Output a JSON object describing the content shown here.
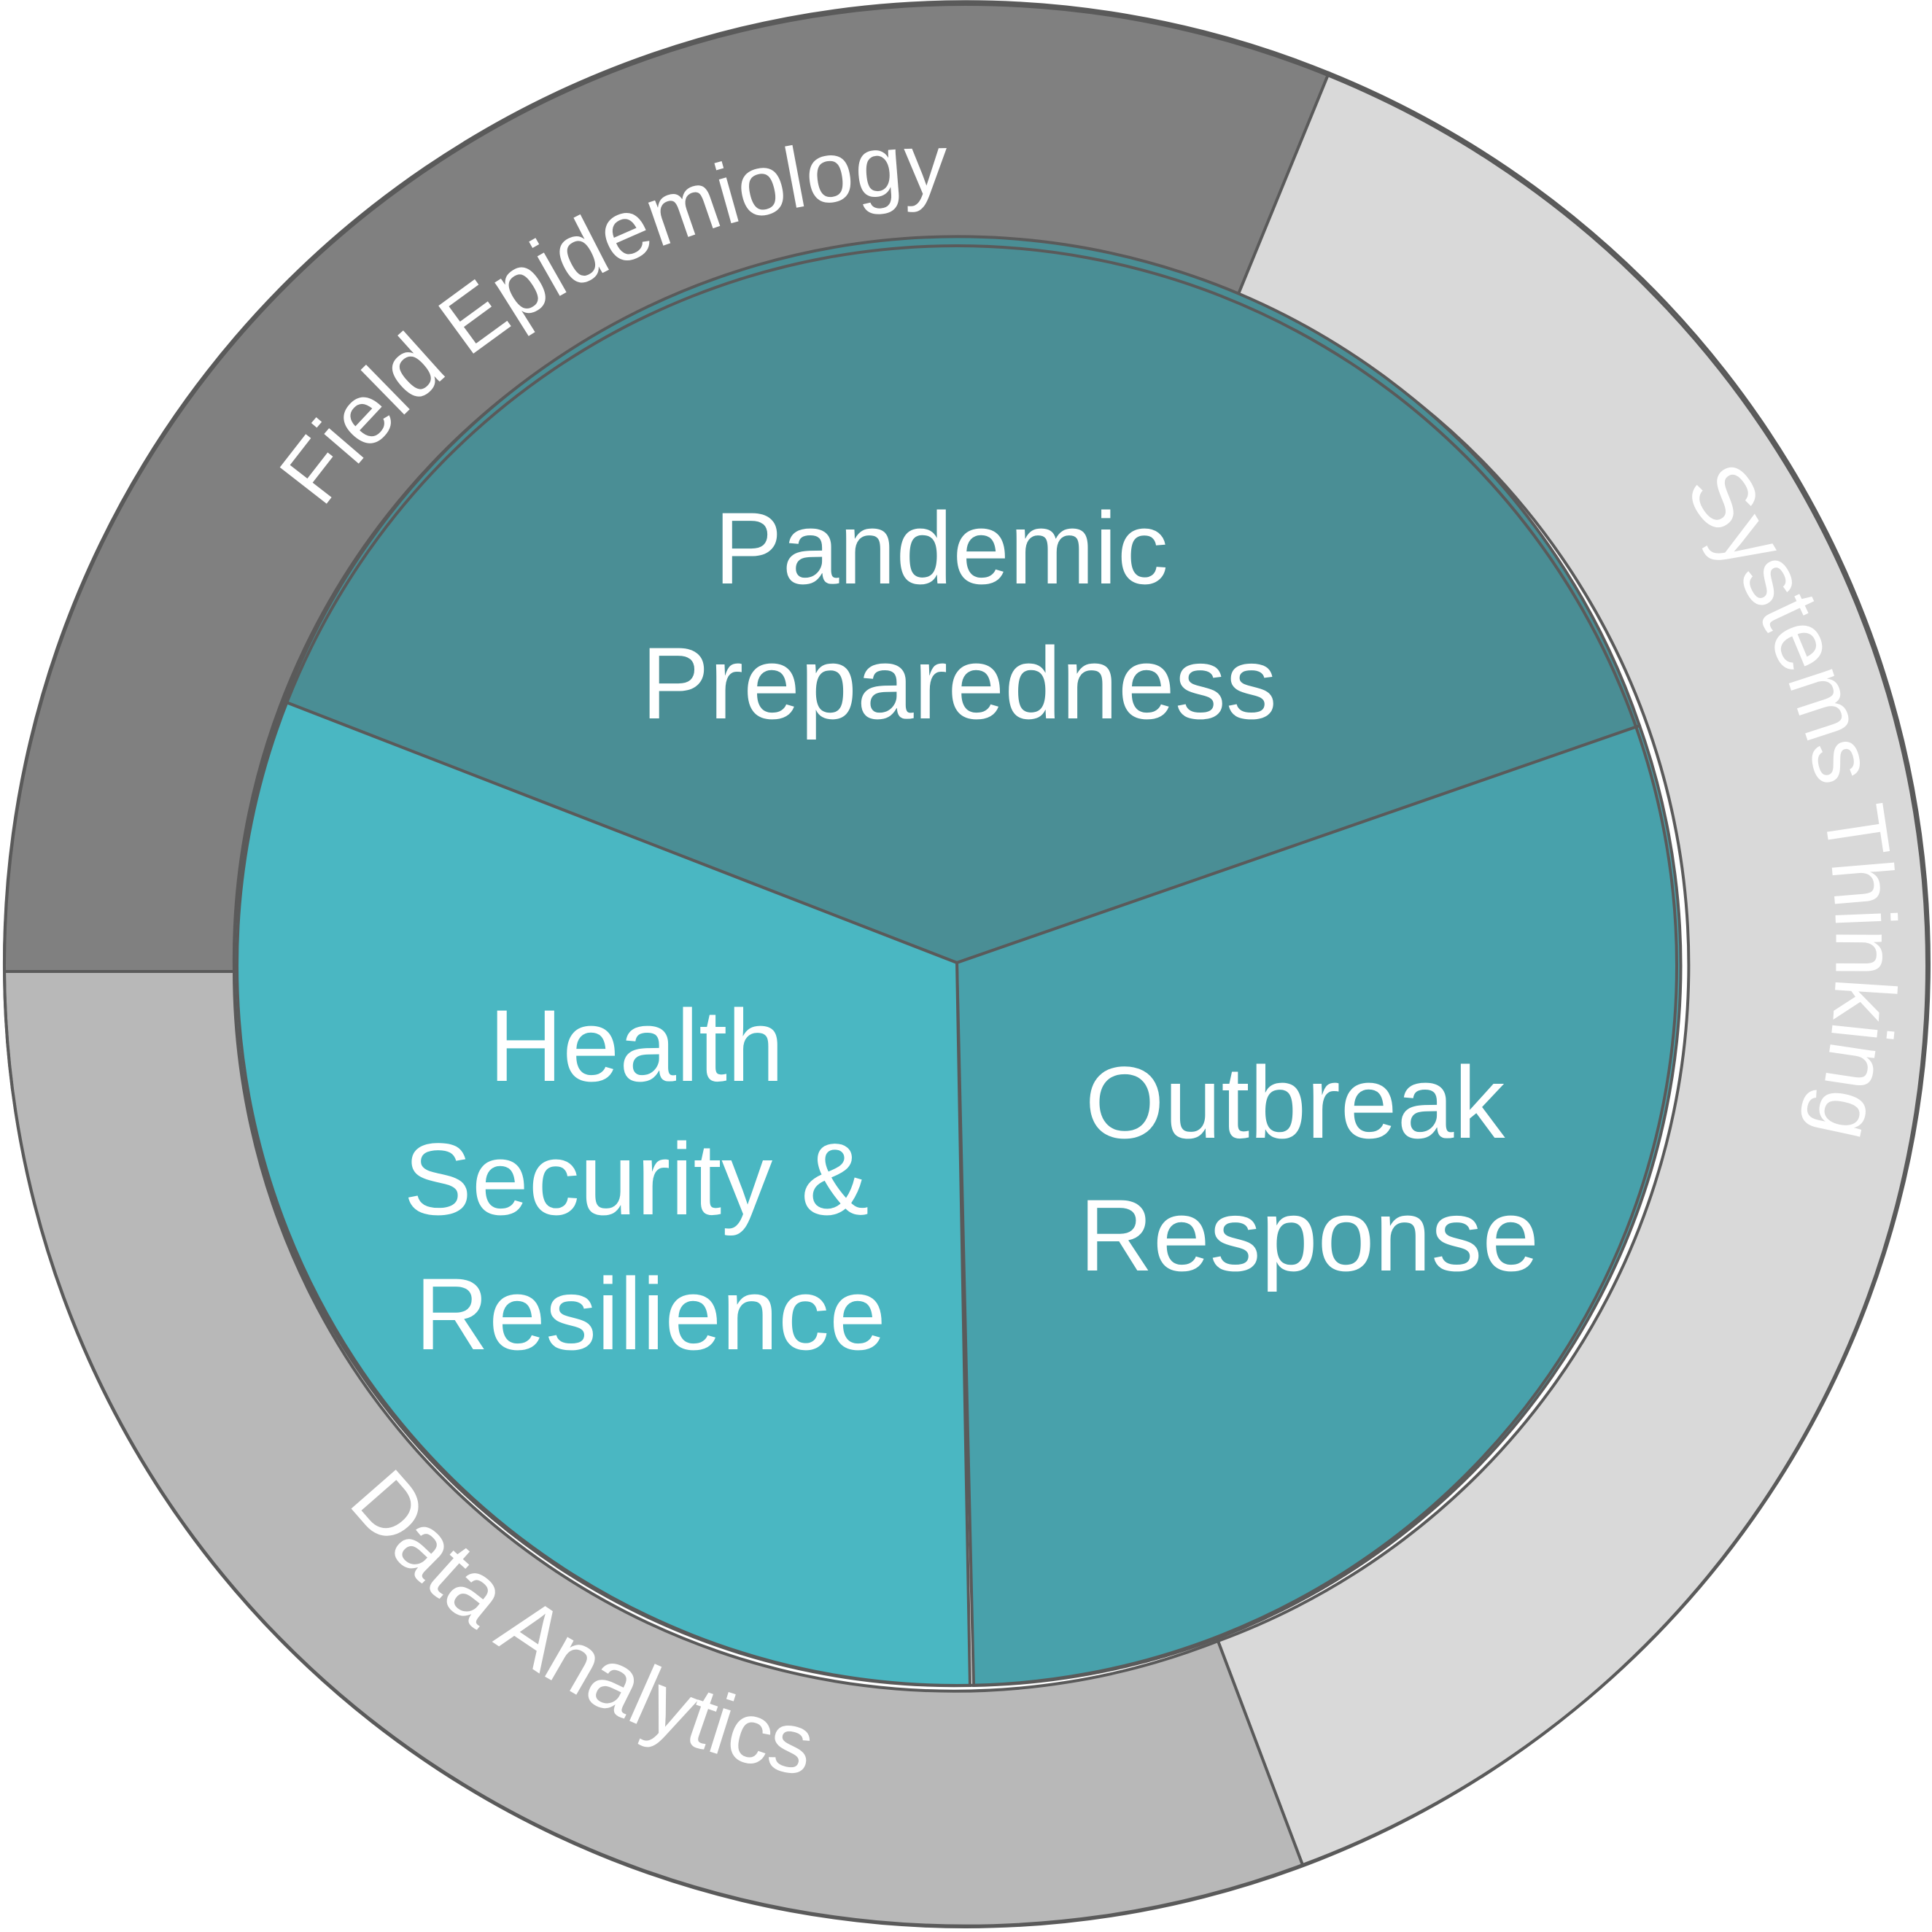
{
  "outer_ring": [
    {
      "id": "field-epidemiology",
      "label": "Field Epidemiology",
      "color": "#808080",
      "text_color": "#ffffff"
    },
    {
      "id": "systems-thinking",
      "label": "Systems Thinking",
      "color": "#d9d9d9",
      "text_color": "#ffffff"
    },
    {
      "id": "data-analytics",
      "label": "Data Analytics",
      "color": "#b8b8b8",
      "text_color": "#ffffff"
    }
  ],
  "inner_core": [
    {
      "id": "pandemic-preparedness",
      "lines": [
        "Pandemic",
        "Preparedness"
      ],
      "color": "#4a8e95"
    },
    {
      "id": "outbreak-response",
      "lines": [
        "Outbreak",
        "Response"
      ],
      "color": "#48a1ab"
    },
    {
      "id": "health-security",
      "lines": [
        "Health",
        "Security &",
        "Resilience"
      ],
      "color": "#4ab7c2"
    }
  ],
  "stroke_color": "#5a5a5a",
  "text_color": "#ffffff"
}
